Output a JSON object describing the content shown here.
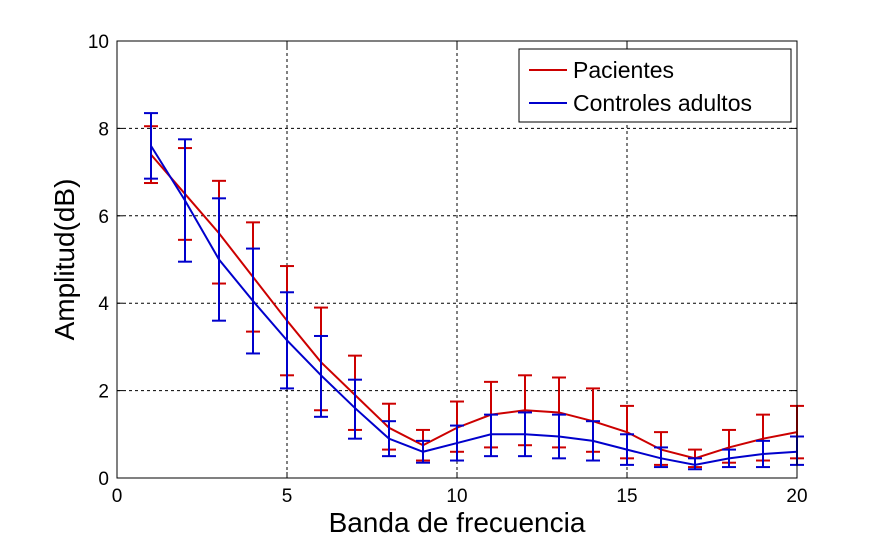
{
  "chart_data": {
    "type": "line",
    "title": "",
    "xlabel": "Banda de frecuencia",
    "ylabel": "Amplitud(dB)",
    "xlim": [
      0,
      20
    ],
    "ylim": [
      0,
      10
    ],
    "xticks": [
      0,
      5,
      10,
      15,
      20
    ],
    "yticks": [
      0,
      2,
      4,
      6,
      8,
      10
    ],
    "grid": true,
    "legend_position": "top-right",
    "x": [
      1,
      2,
      3,
      4,
      5,
      6,
      7,
      8,
      9,
      10,
      11,
      12,
      13,
      14,
      15,
      16,
      17,
      18,
      19,
      20
    ],
    "series": [
      {
        "name": "Pacientes",
        "color": "#cc0000",
        "values": [
          7.4,
          6.5,
          5.6,
          4.6,
          3.6,
          2.65,
          1.9,
          1.15,
          0.75,
          1.15,
          1.45,
          1.55,
          1.5,
          1.3,
          1.05,
          0.65,
          0.45,
          0.7,
          0.9,
          1.05
        ],
        "err_low": [
          6.75,
          5.45,
          4.45,
          3.35,
          2.35,
          1.55,
          1.1,
          0.65,
          0.4,
          0.6,
          0.7,
          0.75,
          0.7,
          0.6,
          0.45,
          0.3,
          0.25,
          0.35,
          0.4,
          0.45
        ],
        "err_high": [
          8.05,
          7.55,
          6.8,
          5.85,
          4.85,
          3.9,
          2.8,
          1.7,
          1.1,
          1.75,
          2.2,
          2.35,
          2.3,
          2.05,
          1.65,
          1.05,
          0.65,
          1.1,
          1.45,
          1.65
        ]
      },
      {
        "name": "Controles adultos",
        "color": "#0000cc",
        "values": [
          7.6,
          6.35,
          5.0,
          4.05,
          3.15,
          2.35,
          1.6,
          0.9,
          0.6,
          0.8,
          1.0,
          1.0,
          0.95,
          0.85,
          0.65,
          0.45,
          0.3,
          0.45,
          0.55,
          0.6
        ],
        "err_low": [
          6.85,
          4.95,
          3.6,
          2.85,
          2.05,
          1.4,
          0.9,
          0.5,
          0.35,
          0.4,
          0.5,
          0.5,
          0.45,
          0.4,
          0.3,
          0.25,
          0.2,
          0.25,
          0.25,
          0.3
        ],
        "err_high": [
          8.35,
          7.75,
          6.4,
          5.25,
          4.25,
          3.25,
          2.25,
          1.3,
          0.85,
          1.2,
          1.45,
          1.5,
          1.45,
          1.3,
          1.0,
          0.7,
          0.45,
          0.65,
          0.85,
          0.95
        ]
      }
    ]
  }
}
